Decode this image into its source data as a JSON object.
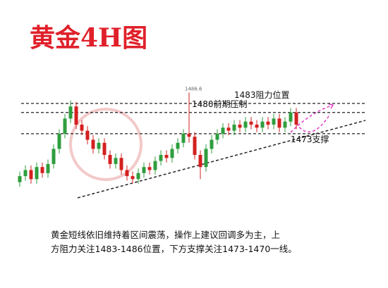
{
  "chart_data": {
    "type": "candlestick",
    "title": "黄金4H图",
    "open": [
      1457,
      1459,
      1461,
      1458,
      1462,
      1460,
      1463,
      1468,
      1473,
      1478,
      1482,
      1476,
      1474,
      1471,
      1468,
      1470,
      1466,
      1463,
      1465,
      1461,
      1459,
      1458,
      1460,
      1462,
      1461,
      1464,
      1466,
      1465,
      1468,
      1470,
      1473,
      1472,
      1466,
      1462,
      1468,
      1471,
      1473,
      1475,
      1474,
      1476,
      1475,
      1477,
      1476,
      1475,
      1477,
      1476,
      1478,
      1475,
      1477,
      1480
    ],
    "high": [
      1460.5,
      1462.5,
      1462.5,
      1463.5,
      1463.5,
      1464.5,
      1469.5,
      1474.5,
      1479.5,
      1484,
      1483.5,
      1477.5,
      1475.5,
      1472.5,
      1471.5,
      1471.5,
      1467.5,
      1466.5,
      1466.5,
      1462.5,
      1460.5,
      1461.5,
      1463.5,
      1463.5,
      1465.5,
      1467.5,
      1467.5,
      1469.5,
      1471.5,
      1474.5,
      1486.6,
      1473.5,
      1467.5,
      1469.5,
      1472.5,
      1474.5,
      1476.5,
      1476.5,
      1477.5,
      1477.5,
      1478.5,
      1478.5,
      1477.5,
      1478.5,
      1478.5,
      1479.5,
      1479.5,
      1478.5,
      1481.5,
      1481.5
    ],
    "low": [
      1455.5,
      1457.5,
      1456.5,
      1456.5,
      1458.5,
      1458.5,
      1461.5,
      1466.5,
      1471.5,
      1476.5,
      1474.5,
      1472.5,
      1469.5,
      1466.5,
      1466.5,
      1464.5,
      1461.5,
      1461.5,
      1459.5,
      1457.5,
      1456.5,
      1456.5,
      1458.5,
      1459.5,
      1459.5,
      1462.5,
      1463.5,
      1463.5,
      1466.5,
      1468.5,
      1470,
      1464.5,
      1458,
      1460.5,
      1466.5,
      1469.5,
      1471.5,
      1472.5,
      1472.5,
      1473.5,
      1473.5,
      1474.5,
      1473.5,
      1473.5,
      1474.5,
      1474.5,
      1473.5,
      1473.5,
      1475.5,
      1474.5
    ],
    "close": [
      1459,
      1461,
      1458,
      1462,
      1460,
      1463,
      1468,
      1473,
      1478,
      1482,
      1476,
      1474,
      1471,
      1468,
      1470,
      1466,
      1463,
      1465,
      1461,
      1459,
      1458,
      1460,
      1462,
      1461,
      1464,
      1466,
      1465,
      1468,
      1470,
      1473,
      1472,
      1466,
      1462,
      1468,
      1471,
      1473,
      1475,
      1474,
      1476,
      1475,
      1477,
      1476,
      1475,
      1477,
      1476,
      1478,
      1475,
      1477,
      1480,
      1476
    ],
    "up_color": "#2e9e3e",
    "down_color": "#d42020",
    "ylim": [
      1447.4,
      1493.9
    ],
    "peak_label": 1486.6,
    "annotations": [
      {
        "text": "1483阻力位置",
        "value": 1483
      },
      {
        "text": "1480前期压制",
        "value": 1480
      },
      {
        "text": "1473支撑",
        "value": 1473
      }
    ],
    "note": [
      "黄金短线依旧维持着区间震荡，操作上建议回调多为主，上",
      "方阻力关注1483-1486位置，下方支撑关注1473-1470一线。"
    ]
  }
}
